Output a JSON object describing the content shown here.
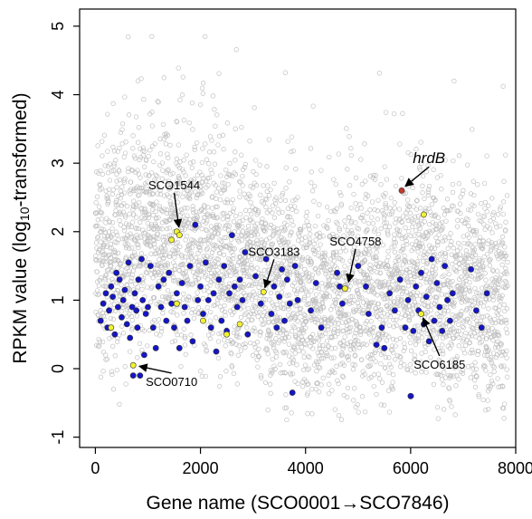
{
  "chart_data": {
    "type": "scatter",
    "title": "",
    "xlabel_prefix": "Gene name (SCO0001",
    "xlabel_suffix": "SCO7846)",
    "ylabel_prefix": "RPKM value (log",
    "ylabel_sub": "10",
    "ylabel_suffix": "-transformed)",
    "xlim": [
      -300,
      8000
    ],
    "ylim": [
      -1.15,
      5.25
    ],
    "x_ticks": [
      0,
      2000,
      4000,
      6000,
      8000
    ],
    "x_tick_labels": [
      "0",
      "2000",
      "4000",
      "6000",
      "8000"
    ],
    "y_ticks": [
      -1,
      0,
      1,
      2,
      3,
      4,
      5
    ],
    "y_tick_labels": [
      "-1",
      "0",
      "1",
      "2",
      "3",
      "4",
      "5"
    ],
    "background_genes": {
      "count": 7846,
      "color": "#c0c0c0",
      "note_values_are_dense_cloud": true
    },
    "highlight_colors": {
      "blue": "#1515c8",
      "yellow": "#f2f230",
      "red": "#c0392b",
      "gray": "#b8b8b8"
    },
    "series": [
      {
        "color_key": "blue",
        "points": [
          [
            100,
            0.7
          ],
          [
            150,
            0.95
          ],
          [
            200,
            1.1
          ],
          [
            230,
            0.6
          ],
          [
            260,
            0.85
          ],
          [
            300,
            1.2
          ],
          [
            330,
            1.05
          ],
          [
            370,
            0.5
          ],
          [
            400,
            1.4
          ],
          [
            430,
            0.9
          ],
          [
            460,
            1.3
          ],
          [
            500,
            0.75
          ],
          [
            530,
            1.0
          ],
          [
            560,
            1.15
          ],
          [
            600,
            0.65
          ],
          [
            630,
            1.55
          ],
          [
            660,
            0.45
          ],
          [
            700,
            0.9
          ],
          [
            720,
            -0.1
          ],
          [
            750,
            1.1
          ],
          [
            780,
            0.85
          ],
          [
            800,
            0.6
          ],
          [
            820,
            1.3
          ],
          [
            850,
            -0.1
          ],
          [
            880,
            1.6
          ],
          [
            900,
            1.0
          ],
          [
            930,
            0.2
          ],
          [
            960,
            0.8
          ],
          [
            1000,
            0.9
          ],
          [
            1050,
            1.5
          ],
          [
            1100,
            0.6
          ],
          [
            1150,
            0.3
          ],
          [
            1200,
            1.2
          ],
          [
            1250,
            0.9
          ],
          [
            1300,
            1.3
          ],
          [
            1350,
            0.7
          ],
          [
            1400,
            1.4
          ],
          [
            1450,
            0.95
          ],
          [
            1500,
            0.6
          ],
          [
            1550,
            1.1
          ],
          [
            1600,
            0.3
          ],
          [
            1650,
            1.25
          ],
          [
            1700,
            0.9
          ],
          [
            1750,
            0.7
          ],
          [
            1800,
            1.5
          ],
          [
            1850,
            0.4
          ],
          [
            1900,
            2.1
          ],
          [
            1950,
            1.0
          ],
          [
            2000,
            1.2
          ],
          [
            2050,
            0.8
          ],
          [
            2100,
            1.55
          ],
          [
            2150,
            1.0
          ],
          [
            2200,
            0.6
          ],
          [
            2250,
            1.1
          ],
          [
            2300,
            0.25
          ],
          [
            2350,
            1.3
          ],
          [
            2400,
            0.7
          ],
          [
            2450,
            1.5
          ],
          [
            2500,
            0.55
          ],
          [
            2550,
            1.1
          ],
          [
            2600,
            1.95
          ],
          [
            2650,
            1.2
          ],
          [
            2700,
            0.9
          ],
          [
            2750,
            1.3
          ],
          [
            2800,
            1.0
          ],
          [
            2850,
            1.7
          ],
          [
            2900,
            0.5
          ],
          [
            3050,
            1.35
          ],
          [
            3150,
            0.95
          ],
          [
            3250,
            1.6
          ],
          [
            3350,
            0.8
          ],
          [
            3400,
            1.2
          ],
          [
            3450,
            0.6
          ],
          [
            3500,
            1.05
          ],
          [
            3550,
            1.45
          ],
          [
            3600,
            0.7
          ],
          [
            3650,
            1.3
          ],
          [
            3700,
            0.95
          ],
          [
            3750,
            -0.35
          ],
          [
            3800,
            1.5
          ],
          [
            3850,
            1.0
          ],
          [
            4100,
            0.85
          ],
          [
            4200,
            1.25
          ],
          [
            4300,
            0.6
          ],
          [
            4600,
            1.4
          ],
          [
            4650,
            1.2
          ],
          [
            4700,
            0.95
          ],
          [
            5000,
            1.5
          ],
          [
            5150,
            1.2
          ],
          [
            5200,
            0.8
          ],
          [
            5350,
            0.35
          ],
          [
            5450,
            0.6
          ],
          [
            5500,
            0.3
          ],
          [
            5600,
            1.1
          ],
          [
            5700,
            0.85
          ],
          [
            5800,
            1.3
          ],
          [
            5900,
            0.6
          ],
          [
            5950,
            1.0
          ],
          [
            6000,
            -0.4
          ],
          [
            6050,
            0.55
          ],
          [
            6100,
            1.2
          ],
          [
            6150,
            0.85
          ],
          [
            6200,
            1.4
          ],
          [
            6250,
            0.65
          ],
          [
            6300,
            1.05
          ],
          [
            6350,
            0.4
          ],
          [
            6400,
            1.6
          ],
          [
            6450,
            0.7
          ],
          [
            6500,
            1.25
          ],
          [
            6550,
            0.9
          ],
          [
            6600,
            0.55
          ],
          [
            6650,
            1.5
          ],
          [
            6700,
            1.0
          ],
          [
            6750,
            0.7
          ],
          [
            6800,
            1.1
          ],
          [
            7150,
            1.45
          ],
          [
            7250,
            0.85
          ],
          [
            7350,
            0.6
          ],
          [
            7450,
            1.1
          ]
        ]
      },
      {
        "color_key": "yellow",
        "points": [
          [
            300,
            0.6
          ],
          [
            720,
            0.05
          ],
          [
            1450,
            1.88
          ],
          [
            1550,
            2.0
          ],
          [
            1600,
            1.95
          ],
          [
            1550,
            0.95
          ],
          [
            2050,
            0.7
          ],
          [
            2500,
            0.5
          ],
          [
            2750,
            0.65
          ],
          [
            3200,
            1.12
          ],
          [
            4750,
            1.17
          ],
          [
            6250,
            2.25
          ],
          [
            6200,
            0.8
          ]
        ]
      },
      {
        "color_key": "red",
        "points": [
          [
            5830,
            2.6
          ]
        ]
      }
    ],
    "annotations": [
      {
        "label": "SCO1544",
        "text_xy": [
          1500,
          2.62
        ],
        "point_xy": [
          1600,
          2.0
        ],
        "style": "normal"
      },
      {
        "label": "SCO3183",
        "text_xy": [
          3400,
          1.65
        ],
        "point_xy": [
          3200,
          1.12
        ],
        "style": "normal"
      },
      {
        "label": "SCO4758",
        "text_xy": [
          4950,
          1.8
        ],
        "point_xy": [
          4800,
          1.2
        ],
        "style": "normal"
      },
      {
        "label": "SCO0710",
        "text_xy": [
          1450,
          -0.25
        ],
        "point_xy": [
          750,
          0.05
        ],
        "style": "normal"
      },
      {
        "label": "SCO6185",
        "text_xy": [
          6550,
          0.0
        ],
        "point_xy": [
          6200,
          0.8
        ],
        "style": "normal"
      },
      {
        "label": "hrdB",
        "text_xy": [
          6350,
          3.0
        ],
        "point_xy": [
          5830,
          2.62
        ],
        "style": "italic"
      }
    ]
  }
}
